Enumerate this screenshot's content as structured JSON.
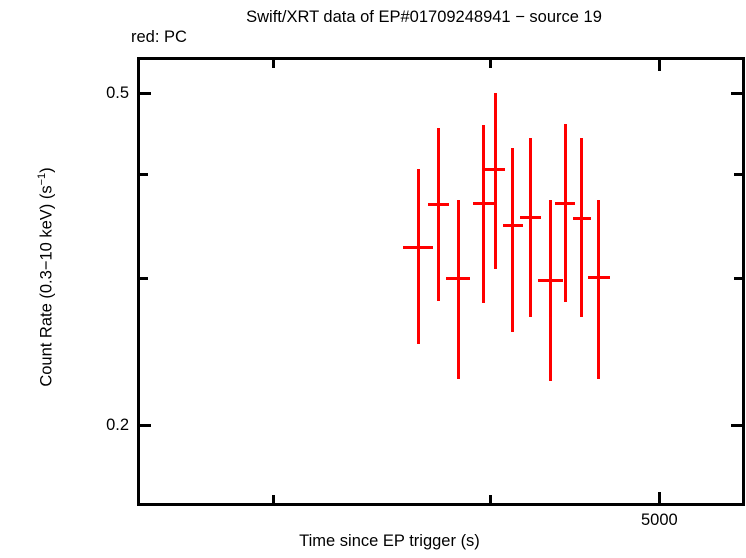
{
  "page": {
    "background": "#ffffff",
    "frame_color": "#000000"
  },
  "chart_data": {
    "type": "scatter",
    "title": "Swift/XRT data of EP#01709248941 − source 19",
    "legend_red": "red: PC",
    "xlabel": "Time since EP trigger (s)",
    "ylabel": "Count Rate (0.3−10 keV) (s⁻¹)",
    "ylabel_parts": {
      "pre": "Count Rate (0.3−10 keV) (s",
      "sup": "−1",
      "post": ")"
    },
    "xscale": "log",
    "yscale": "log",
    "xlim": [
      2505,
      5600
    ],
    "ylim": [
      0.16,
      0.553
    ],
    "grid": false,
    "legend_position": "top-left-outside",
    "xticks": [
      {
        "value": 3000,
        "label": ""
      },
      {
        "value": 4000,
        "label": ""
      },
      {
        "value": 5000,
        "label": "5000"
      }
    ],
    "yticks": [
      {
        "value": 0.5,
        "label": "0.5"
      },
      {
        "value": 0.4,
        "label": ""
      },
      {
        "value": 0.3,
        "label": ""
      },
      {
        "value": 0.2,
        "label": "0.2"
      }
    ],
    "series": [
      {
        "name": "PC",
        "color": "#ff0000",
        "marker": "cross-error-bars",
        "points": [
          {
            "t": 3634,
            "t_err": 72,
            "rate": 0.327,
            "rate_err_up": 0.079,
            "rate_err_down": 0.077
          },
          {
            "t": 3732,
            "t_err": 52,
            "rate": 0.368,
            "rate_err_up": 0.087,
            "rate_err_down": 0.086
          },
          {
            "t": 3831,
            "t_err": 59,
            "rate": 0.3,
            "rate_err_up": 0.073,
            "rate_err_down": 0.073
          },
          {
            "t": 3962,
            "t_err": 55,
            "rate": 0.369,
            "rate_err_up": 0.089,
            "rate_err_down": 0.089
          },
          {
            "t": 4023,
            "t_err": 53,
            "rate": 0.405,
            "rate_err_up": 0.096,
            "rate_err_down": 0.097
          },
          {
            "t": 4118,
            "t_err": 55,
            "rate": 0.347,
            "rate_err_up": 0.083,
            "rate_err_down": 0.088
          },
          {
            "t": 4217,
            "t_err": 59,
            "rate": 0.355,
            "rate_err_up": 0.087,
            "rate_err_down": 0.085
          },
          {
            "t": 4330,
            "t_err": 72,
            "rate": 0.298,
            "rate_err_up": 0.075,
            "rate_err_down": 0.072
          },
          {
            "t": 4414,
            "t_err": 56,
            "rate": 0.369,
            "rate_err_up": 0.091,
            "rate_err_down": 0.088
          },
          {
            "t": 4513,
            "t_err": 54,
            "rate": 0.354,
            "rate_err_up": 0.088,
            "rate_err_down": 0.084
          },
          {
            "t": 4616,
            "t_err": 67,
            "rate": 0.301,
            "rate_err_up": 0.072,
            "rate_err_down": 0.074
          }
        ]
      }
    ]
  }
}
